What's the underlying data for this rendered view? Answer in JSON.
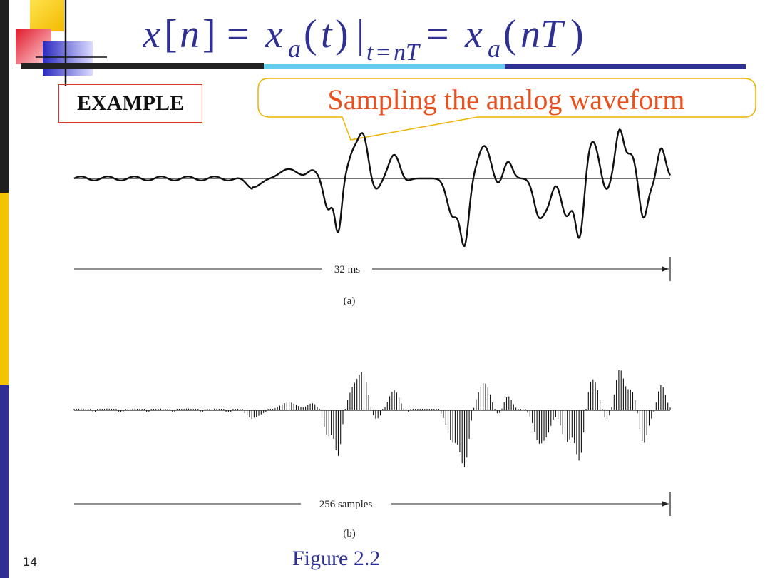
{
  "slide": {
    "number": "14",
    "figure_caption": "Figure 2.2"
  },
  "equation": {
    "display": "x[n] = x_a(t) |_{t=nT} = x_a(nT)"
  },
  "example_label": "EXAMPLE",
  "callout": {
    "text": "Sampling the analog waveform"
  },
  "figure_a": {
    "duration_label": "32 ms",
    "panel_label": "(a)"
  },
  "figure_b": {
    "samples_label": "256 samples",
    "panel_label": "(b)"
  },
  "colors": {
    "equation": "#2e3192",
    "callout_text": "#e8501e",
    "callout_border": "#f0b400",
    "example_border": "#d9362a",
    "caption": "#2e3192"
  }
}
